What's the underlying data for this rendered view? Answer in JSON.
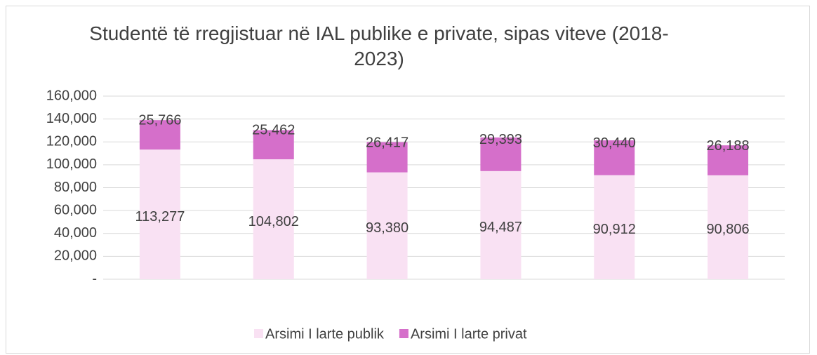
{
  "chart_data": {
    "type": "stacked_bar",
    "title": "Studentë të rregjistuar në IAL publike e private, sipas viteve (2018-2023)",
    "categories": [
      null,
      null,
      null,
      null,
      null,
      null
    ],
    "series": [
      {
        "name": "Arsimi I larte publik",
        "color": "#f9e1f3",
        "values": [
          113277,
          104802,
          93380,
          94487,
          90912,
          90806
        ],
        "value_labels": [
          "113,277",
          "104,802",
          "93,380",
          "94,487",
          "90,912",
          "90,806"
        ]
      },
      {
        "name": "Arsimi I larte privat",
        "color": "#d56fca",
        "values": [
          25766,
          25462,
          26417,
          29393,
          30440,
          26188
        ],
        "value_labels": [
          "25,766",
          "25,462",
          "26,417",
          "29,393",
          "30,440",
          "26,188"
        ]
      }
    ],
    "ylim": [
      0,
      160000
    ],
    "yticks": [
      {
        "value": 0,
        "label": "-"
      },
      {
        "value": 20000,
        "label": "20,000"
      },
      {
        "value": 40000,
        "label": "40,000"
      },
      {
        "value": 60000,
        "label": "60,000"
      },
      {
        "value": 80000,
        "label": "80,000"
      },
      {
        "value": 100000,
        "label": "100,000"
      },
      {
        "value": 120000,
        "label": "120,000"
      },
      {
        "value": 140000,
        "label": "140,000"
      },
      {
        "value": 160000,
        "label": "160,000"
      }
    ],
    "grid": true,
    "legend": "bottom"
  }
}
